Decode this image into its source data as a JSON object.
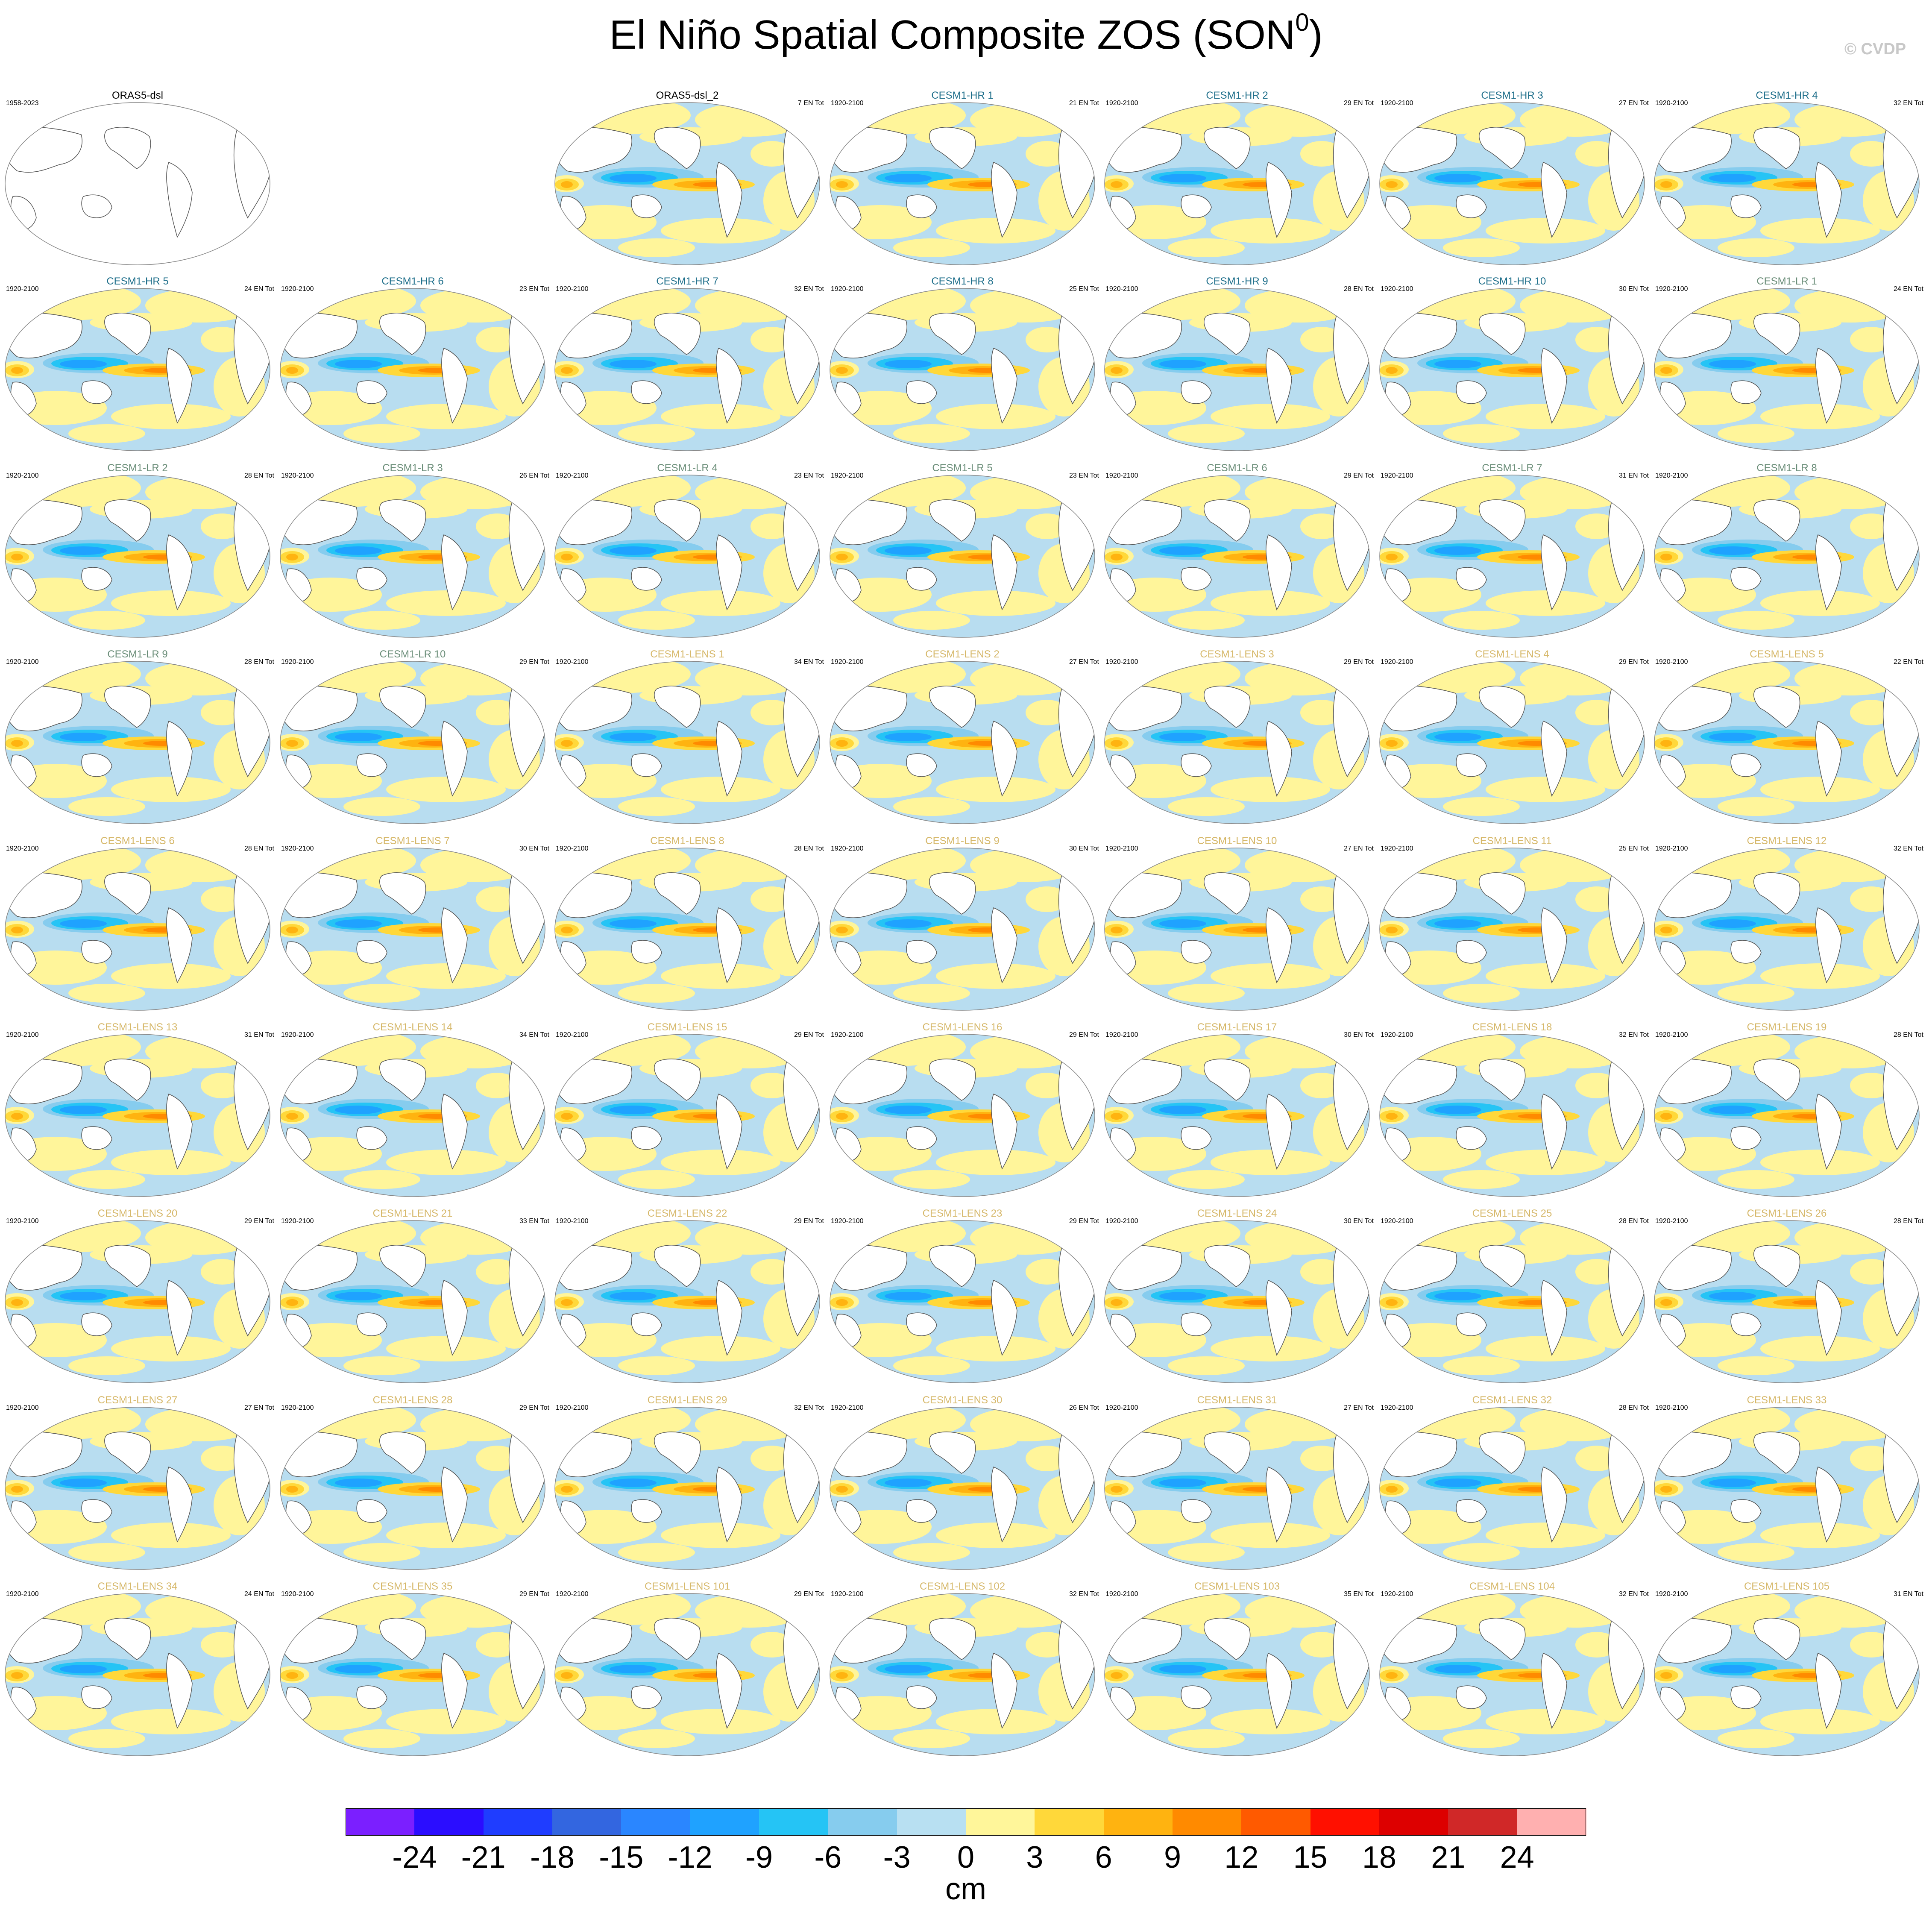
{
  "title": {
    "main": "El Niño Spatial Composite ZOS (SON",
    "superscript": "0",
    "close": ")"
  },
  "credit": "© CVDP",
  "panels": [
    {
      "name": "ORAS5-dsl",
      "years": "1958-2023",
      "count": "",
      "group": "obs"
    },
    {
      "name": "ORAS5-dsl_2",
      "years": "",
      "count": "7 EN Tot",
      "group": "obs"
    },
    {
      "name": "CESM1-HR 1",
      "years": "1920-2100",
      "count": "21 EN Tot",
      "group": "hr"
    },
    {
      "name": "CESM1-HR 2",
      "years": "1920-2100",
      "count": "29 EN Tot",
      "group": "hr"
    },
    {
      "name": "CESM1-HR 3",
      "years": "1920-2100",
      "count": "27 EN Tot",
      "group": "hr"
    },
    {
      "name": "CESM1-HR 4",
      "years": "1920-2100",
      "count": "32 EN Tot",
      "group": "hr"
    },
    {
      "name": "CESM1-HR 5",
      "years": "1920-2100",
      "count": "24 EN Tot",
      "group": "hr"
    },
    {
      "name": "CESM1-HR 6",
      "years": "1920-2100",
      "count": "23 EN Tot",
      "group": "hr"
    },
    {
      "name": "CESM1-HR 7",
      "years": "1920-2100",
      "count": "32 EN Tot",
      "group": "hr"
    },
    {
      "name": "CESM1-HR 8",
      "years": "1920-2100",
      "count": "25 EN Tot",
      "group": "hr"
    },
    {
      "name": "CESM1-HR 9",
      "years": "1920-2100",
      "count": "28 EN Tot",
      "group": "hr"
    },
    {
      "name": "CESM1-HR 10",
      "years": "1920-2100",
      "count": "30 EN Tot",
      "group": "hr"
    },
    {
      "name": "CESM1-LR 1",
      "years": "1920-2100",
      "count": "24 EN Tot",
      "group": "lr"
    },
    {
      "name": "CESM1-LR 2",
      "years": "1920-2100",
      "count": "28 EN Tot",
      "group": "lr"
    },
    {
      "name": "CESM1-LR 3",
      "years": "1920-2100",
      "count": "26 EN Tot",
      "group": "lr"
    },
    {
      "name": "CESM1-LR 4",
      "years": "1920-2100",
      "count": "23 EN Tot",
      "group": "lr"
    },
    {
      "name": "CESM1-LR 5",
      "years": "1920-2100",
      "count": "23 EN Tot",
      "group": "lr"
    },
    {
      "name": "CESM1-LR 6",
      "years": "1920-2100",
      "count": "29 EN Tot",
      "group": "lr"
    },
    {
      "name": "CESM1-LR 7",
      "years": "1920-2100",
      "count": "31 EN Tot",
      "group": "lr"
    },
    {
      "name": "CESM1-LR 8",
      "years": "1920-2100",
      "count": "",
      "group": "lr"
    },
    {
      "name": "CESM1-LR 9",
      "years": "1920-2100",
      "count": "28 EN Tot",
      "group": "lr"
    },
    {
      "name": "CESM1-LR 10",
      "years": "1920-2100",
      "count": "29 EN Tot",
      "group": "lr"
    },
    {
      "name": "CESM1-LENS 1",
      "years": "1920-2100",
      "count": "34 EN Tot",
      "group": "lens"
    },
    {
      "name": "CESM1-LENS 2",
      "years": "1920-2100",
      "count": "27 EN Tot",
      "group": "lens"
    },
    {
      "name": "CESM1-LENS 3",
      "years": "1920-2100",
      "count": "29 EN Tot",
      "group": "lens"
    },
    {
      "name": "CESM1-LENS 4",
      "years": "1920-2100",
      "count": "29 EN Tot",
      "group": "lens"
    },
    {
      "name": "CESM1-LENS 5",
      "years": "1920-2100",
      "count": "22 EN Tot",
      "group": "lens"
    },
    {
      "name": "CESM1-LENS 6",
      "years": "1920-2100",
      "count": "28 EN Tot",
      "group": "lens"
    },
    {
      "name": "CESM1-LENS 7",
      "years": "1920-2100",
      "count": "30 EN Tot",
      "group": "lens"
    },
    {
      "name": "CESM1-LENS 8",
      "years": "1920-2100",
      "count": "28 EN Tot",
      "group": "lens"
    },
    {
      "name": "CESM1-LENS 9",
      "years": "1920-2100",
      "count": "30 EN Tot",
      "group": "lens"
    },
    {
      "name": "CESM1-LENS 10",
      "years": "1920-2100",
      "count": "27 EN Tot",
      "group": "lens"
    },
    {
      "name": "CESM1-LENS 11",
      "years": "1920-2100",
      "count": "25 EN Tot",
      "group": "lens"
    },
    {
      "name": "CESM1-LENS 12",
      "years": "1920-2100",
      "count": "32 EN Tot",
      "group": "lens"
    },
    {
      "name": "CESM1-LENS 13",
      "years": "1920-2100",
      "count": "31 EN Tot",
      "group": "lens"
    },
    {
      "name": "CESM1-LENS 14",
      "years": "1920-2100",
      "count": "34 EN Tot",
      "group": "lens"
    },
    {
      "name": "CESM1-LENS 15",
      "years": "1920-2100",
      "count": "29 EN Tot",
      "group": "lens"
    },
    {
      "name": "CESM1-LENS 16",
      "years": "1920-2100",
      "count": "29 EN Tot",
      "group": "lens"
    },
    {
      "name": "CESM1-LENS 17",
      "years": "1920-2100",
      "count": "30 EN Tot",
      "group": "lens"
    },
    {
      "name": "CESM1-LENS 18",
      "years": "1920-2100",
      "count": "32 EN Tot",
      "group": "lens"
    },
    {
      "name": "CESM1-LENS 19",
      "years": "1920-2100",
      "count": "28 EN Tot",
      "group": "lens"
    },
    {
      "name": "CESM1-LENS 20",
      "years": "1920-2100",
      "count": "29 EN Tot",
      "group": "lens"
    },
    {
      "name": "CESM1-LENS 21",
      "years": "1920-2100",
      "count": "33 EN Tot",
      "group": "lens"
    },
    {
      "name": "CESM1-LENS 22",
      "years": "1920-2100",
      "count": "29 EN Tot",
      "group": "lens"
    },
    {
      "name": "CESM1-LENS 23",
      "years": "1920-2100",
      "count": "29 EN Tot",
      "group": "lens"
    },
    {
      "name": "CESM1-LENS 24",
      "years": "1920-2100",
      "count": "30 EN Tot",
      "group": "lens"
    },
    {
      "name": "CESM1-LENS 25",
      "years": "1920-2100",
      "count": "28 EN Tot",
      "group": "lens"
    },
    {
      "name": "CESM1-LENS 26",
      "years": "1920-2100",
      "count": "28 EN Tot",
      "group": "lens"
    },
    {
      "name": "CESM1-LENS 27",
      "years": "1920-2100",
      "count": "27 EN Tot",
      "group": "lens"
    },
    {
      "name": "CESM1-LENS 28",
      "years": "1920-2100",
      "count": "29 EN Tot",
      "group": "lens"
    },
    {
      "name": "CESM1-LENS 29",
      "years": "1920-2100",
      "count": "32 EN Tot",
      "group": "lens"
    },
    {
      "name": "CESM1-LENS 30",
      "years": "1920-2100",
      "count": "26 EN Tot",
      "group": "lens"
    },
    {
      "name": "CESM1-LENS 31",
      "years": "1920-2100",
      "count": "27 EN Tot",
      "group": "lens"
    },
    {
      "name": "CESM1-LENS 32",
      "years": "1920-2100",
      "count": "28 EN Tot",
      "group": "lens"
    },
    {
      "name": "CESM1-LENS 33",
      "years": "1920-2100",
      "count": "",
      "group": "lens"
    },
    {
      "name": "CESM1-LENS 34",
      "years": "1920-2100",
      "count": "24 EN Tot",
      "group": "lens"
    },
    {
      "name": "CESM1-LENS 35",
      "years": "1920-2100",
      "count": "29 EN Tot",
      "group": "lens"
    },
    {
      "name": "CESM1-LENS 101",
      "years": "1920-2100",
      "count": "29 EN Tot",
      "group": "lens"
    },
    {
      "name": "CESM1-LENS 102",
      "years": "1920-2100",
      "count": "32 EN Tot",
      "group": "lens"
    },
    {
      "name": "CESM1-LENS 103",
      "years": "1920-2100",
      "count": "35 EN Tot",
      "group": "lens"
    },
    {
      "name": "CESM1-LENS 104",
      "years": "1920-2100",
      "count": "32 EN Tot",
      "group": "lens"
    },
    {
      "name": "CESM1-LENS 105",
      "years": "1920-2100",
      "count": "31 EN Tot",
      "group": "lens"
    }
  ],
  "group_colors": {
    "obs": "#000000",
    "hr": "#1f6f8b",
    "lr": "#6b8e79",
    "lens": "#d6b86a"
  },
  "map_colors": {
    "ocean_light_blue": "#b8ddf0",
    "ocean_light_yellow": "#fff59a",
    "land": "#ffffff",
    "coast": "#555555"
  },
  "colorbar": {
    "units": "cm",
    "colors": [
      "#7b1fff",
      "#2b0dff",
      "#1f3dff",
      "#3366e0",
      "#2a86ff",
      "#1fa2ff",
      "#25c4f5",
      "#86ccee",
      "#b8e0f2",
      "#fff69a",
      "#ffd83a",
      "#ffb310",
      "#ff8a00",
      "#ff5a00",
      "#ff1000",
      "#dd0000",
      "#d02828",
      "#ffb0b0"
    ],
    "labels": [
      "-24",
      "-21",
      "-18",
      "-15",
      "-12",
      "-9",
      "-6",
      "-3",
      "0",
      "3",
      "6",
      "9",
      "12",
      "15",
      "18",
      "21",
      "24"
    ]
  }
}
